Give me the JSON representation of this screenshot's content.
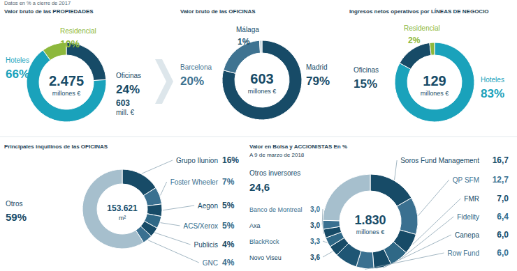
{
  "header": "Datos en % a cierre de 2017",
  "chart_data": [
    {
      "type": "donut",
      "title": "Valor bruto de las PROPIEDADES",
      "categories": [
        "Oficinas",
        "Hoteles",
        "Residencial"
      ],
      "values": [
        24,
        66,
        10
      ],
      "value_labels": [
        "24%",
        "66%",
        "10%"
      ],
      "colors": [
        "#174b67",
        "#1aa2bb",
        "#8db83c"
      ],
      "data_labels": true,
      "annotations": [
        "2.475",
        "millones €",
        "603",
        "mill. €"
      ]
    },
    {
      "type": "donut",
      "title": "Valor bruto de las OFICINAS",
      "categories": [
        "Madrid",
        "Barcelona",
        "Málaga"
      ],
      "values": [
        79,
        20,
        1
      ],
      "value_labels": [
        "79%",
        "20%",
        "1%"
      ],
      "colors": [
        "#174b67",
        "#3f7391",
        "#c8d8e0"
      ],
      "data_labels": true,
      "annotations": [
        "603",
        "millones €"
      ]
    },
    {
      "type": "donut",
      "title": "Ingresos netos operativos por LÍNEAS DE NEGOCIO",
      "categories": [
        "Hoteles",
        "Oficinas",
        "Residencial"
      ],
      "values": [
        83,
        15,
        2
      ],
      "value_labels": [
        "83%",
        "15%",
        "2%"
      ],
      "colors": [
        "#1aa2bb",
        "#174b67",
        "#8db83c"
      ],
      "data_labels": true,
      "annotations": [
        "129",
        "millones €"
      ]
    },
    {
      "type": "donut",
      "title": "Principales inquilinos de las OFICINAS",
      "categories": [
        "Grupo Ilunion",
        "Foster Wheeler",
        "Aegon",
        "ACS/Xerox",
        "Publicis",
        "GNC",
        "Otros"
      ],
      "values": [
        16,
        7,
        5,
        5,
        4,
        4,
        59
      ],
      "value_labels": [
        "16%",
        "7%",
        "5%",
        "5%",
        "4%",
        "4%",
        "59%"
      ],
      "colors": [
        "#174b67",
        "#3a7090",
        "#174b67",
        "#2f6886",
        "#174b67",
        "#3a7090",
        "#a6bfcd"
      ],
      "data_labels": true,
      "annotations": [
        "153.621",
        "m²"
      ]
    },
    {
      "type": "donut",
      "title": "Valor en Bolsa y ACCIONISTAS En %",
      "subtitle": "A 9 de marzo de 2018",
      "categories": [
        "Soros Fund Management",
        "QP SFM",
        "FMR",
        "Fidelity",
        "Canepa",
        "Row Fund",
        null,
        "Novo Viseu",
        "BlackRock",
        "Axa",
        "Banco de Montreal",
        "Otros inversores"
      ],
      "values": [
        16.7,
        12.7,
        7.0,
        6.4,
        6.0,
        6.0,
        7.7,
        3.6,
        3.3,
        3.0,
        3.0,
        24.6
      ],
      "value_labels": [
        "16,7",
        "12,7",
        "7,0",
        "6,4",
        "6,0",
        "6,0",
        null,
        "3,6",
        "3,3",
        "3,0",
        "3,0",
        "24,6"
      ],
      "colors": [
        "#174b67",
        "#3a7090",
        "#174b67",
        "#2f6886",
        "#174b67",
        "#3a7090",
        "#1f5674",
        "#174b67",
        "#2f6886",
        "#174b67",
        "#3a7090",
        "#a6bfcd"
      ],
      "data_labels": true,
      "annotations": [
        "1.830",
        "millones €"
      ]
    }
  ]
}
